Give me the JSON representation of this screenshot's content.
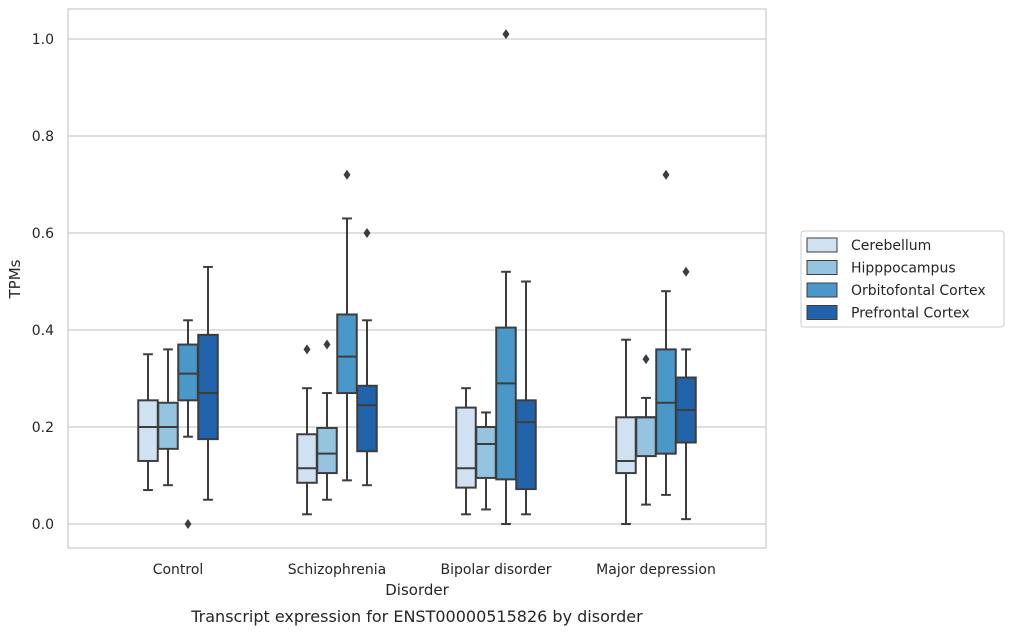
{
  "chart_data": {
    "type": "box",
    "title": "",
    "caption": "Transcript expression for ENST00000515826 by disorder",
    "xlabel": "Disorder",
    "ylabel": "TPMs",
    "categories": [
      "Control",
      "Schizophrenia",
      "Bipolar disorder",
      "Major depression"
    ],
    "ylim": [
      -0.05,
      1.06
    ],
    "yticks": [
      0.0,
      0.2,
      0.4,
      0.6,
      0.8,
      1.0
    ],
    "ytick_labels": [
      "0.0",
      "0.2",
      "0.4",
      "0.6",
      "0.8",
      "1.0"
    ],
    "grid": "horizontal",
    "legend_position": "right",
    "series": [
      {
        "name": "Cerebellum",
        "color": "#d0e1f2",
        "boxes": [
          {
            "whisker_low": 0.07,
            "q1": 0.13,
            "median": 0.2,
            "q3": 0.255,
            "whisker_high": 0.35,
            "outliers": []
          },
          {
            "whisker_low": 0.02,
            "q1": 0.085,
            "median": 0.115,
            "q3": 0.185,
            "whisker_high": 0.28,
            "outliers": [
              0.36
            ]
          },
          {
            "whisker_low": 0.02,
            "q1": 0.075,
            "median": 0.115,
            "q3": 0.24,
            "whisker_high": 0.28,
            "outliers": []
          },
          {
            "whisker_low": 0.0,
            "q1": 0.105,
            "median": 0.13,
            "q3": 0.22,
            "whisker_high": 0.38,
            "outliers": []
          }
        ]
      },
      {
        "name": "Hipppocampus",
        "color": "#94c4df",
        "boxes": [
          {
            "whisker_low": 0.08,
            "q1": 0.155,
            "median": 0.2,
            "q3": 0.25,
            "whisker_high": 0.36,
            "outliers": []
          },
          {
            "whisker_low": 0.05,
            "q1": 0.105,
            "median": 0.145,
            "q3": 0.198,
            "whisker_high": 0.27,
            "outliers": [
              0.37
            ]
          },
          {
            "whisker_low": 0.03,
            "q1": 0.095,
            "median": 0.165,
            "q3": 0.2,
            "whisker_high": 0.23,
            "outliers": []
          },
          {
            "whisker_low": 0.04,
            "q1": 0.14,
            "median": 0.22,
            "q3": 0.22,
            "whisker_high": 0.26,
            "outliers": [
              0.34
            ]
          }
        ]
      },
      {
        "name": "Orbitofontal Cortex",
        "color": "#4a98c9",
        "boxes": [
          {
            "whisker_low": 0.18,
            "q1": 0.255,
            "median": 0.31,
            "q3": 0.37,
            "whisker_high": 0.42,
            "outliers": [
              0.0
            ]
          },
          {
            "whisker_low": 0.09,
            "q1": 0.27,
            "median": 0.345,
            "q3": 0.432,
            "whisker_high": 0.63,
            "outliers": [
              0.72
            ]
          },
          {
            "whisker_low": 0.0,
            "q1": 0.092,
            "median": 0.29,
            "q3": 0.405,
            "whisker_high": 0.52,
            "outliers": [
              1.01
            ]
          },
          {
            "whisker_low": 0.06,
            "q1": 0.145,
            "median": 0.25,
            "q3": 0.36,
            "whisker_high": 0.48,
            "outliers": [
              0.72
            ]
          }
        ]
      },
      {
        "name": "Prefrontal Cortex",
        "color": "#2163aa",
        "boxes": [
          {
            "whisker_low": 0.05,
            "q1": 0.175,
            "median": 0.27,
            "q3": 0.39,
            "whisker_high": 0.53,
            "outliers": []
          },
          {
            "whisker_low": 0.08,
            "q1": 0.15,
            "median": 0.245,
            "q3": 0.285,
            "whisker_high": 0.42,
            "outliers": [
              0.6
            ]
          },
          {
            "whisker_low": 0.02,
            "q1": 0.072,
            "median": 0.21,
            "q3": 0.255,
            "whisker_high": 0.5,
            "outliers": []
          },
          {
            "whisker_low": 0.01,
            "q1": 0.168,
            "median": 0.235,
            "q3": 0.302,
            "whisker_high": 0.36,
            "outliers": [
              0.52
            ]
          }
        ]
      }
    ]
  }
}
